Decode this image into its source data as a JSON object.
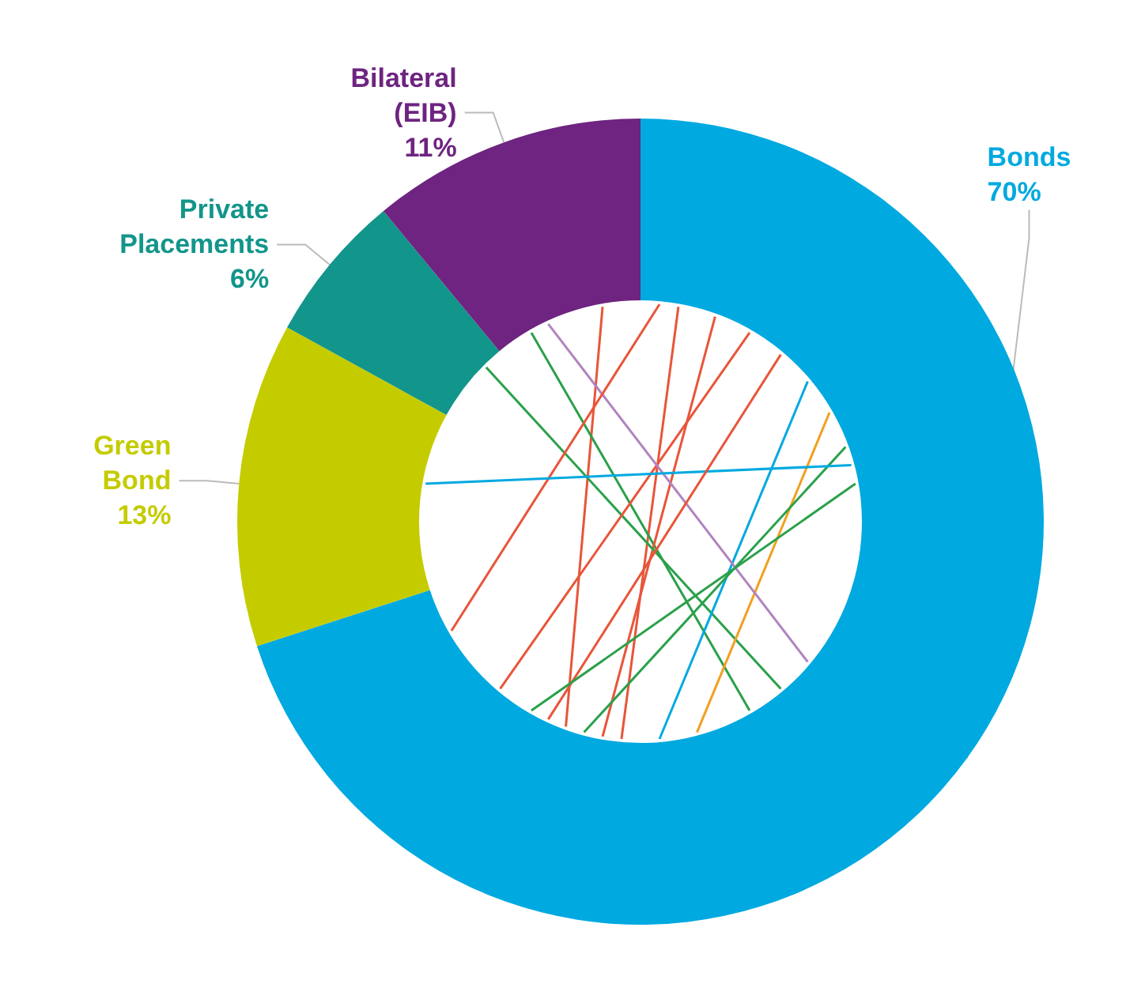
{
  "chart_data": {
    "type": "donut",
    "categories": [
      "Bonds",
      "Green Bond",
      "Private Placements",
      "Bilateral (EIB)"
    ],
    "values": [
      70,
      13,
      6,
      11
    ],
    "colors": [
      "#00a9e0",
      "#c4cc00",
      "#12958a",
      "#6e2480"
    ],
    "value_labels": [
      "70%",
      "13%",
      "6%",
      "11%"
    ],
    "legend": false
  }
}
